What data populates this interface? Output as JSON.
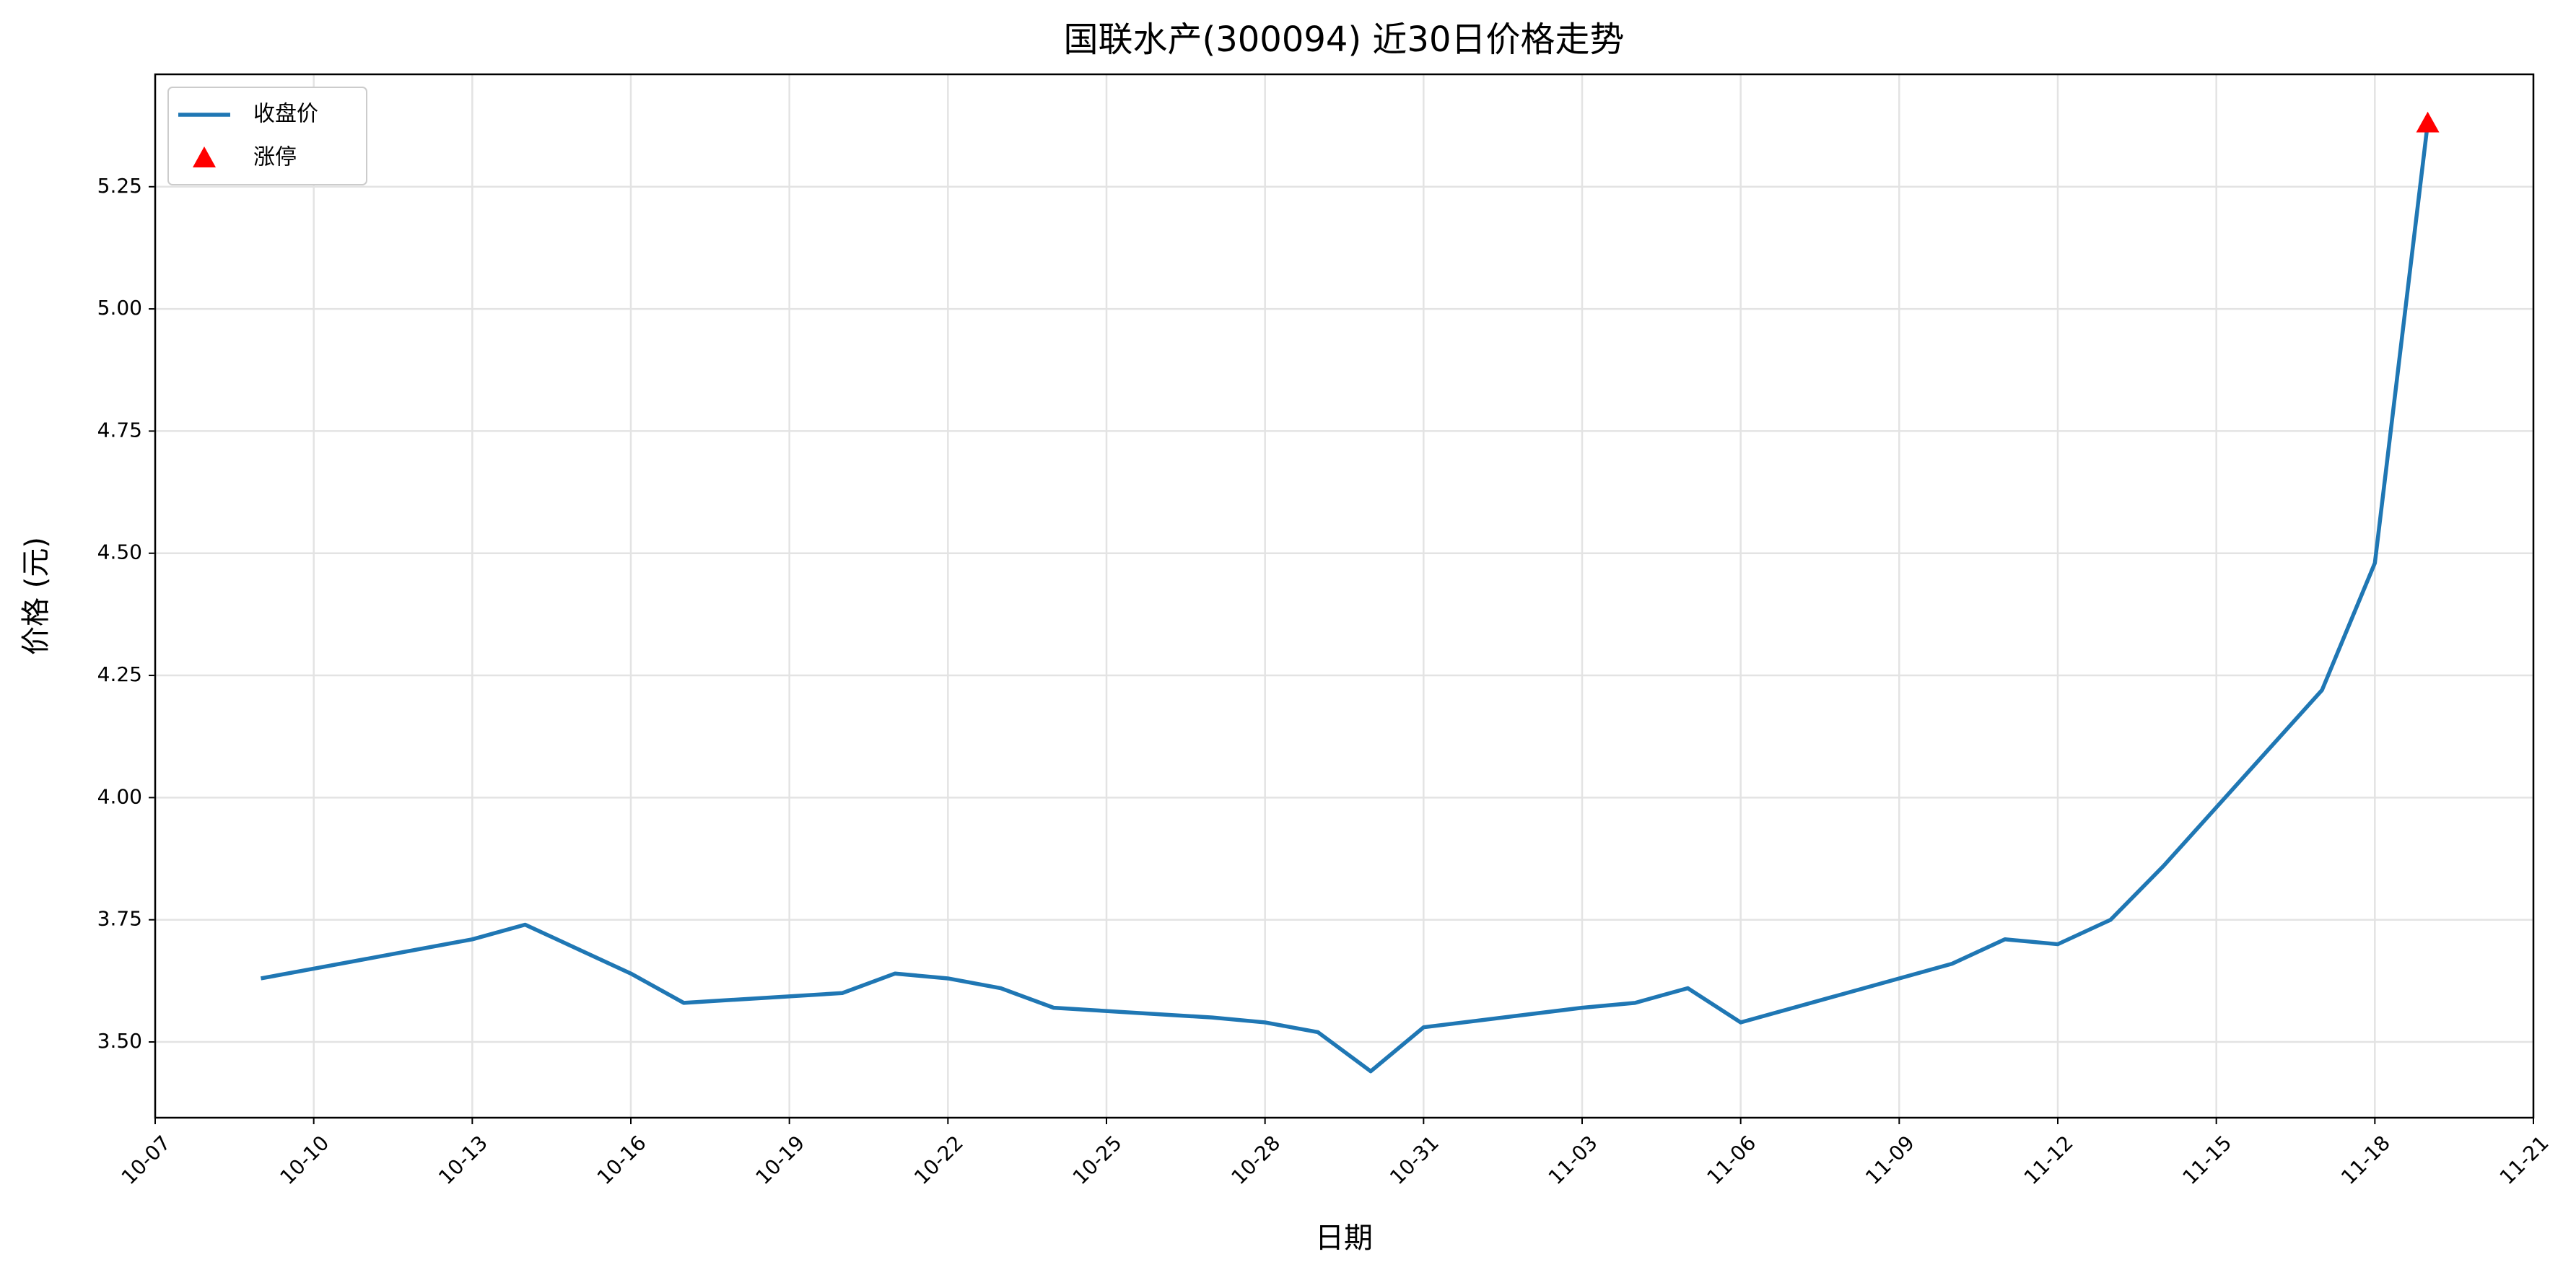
{
  "chart_data": {
    "type": "line",
    "title": "国联水产(300094) 近30日价格走势",
    "xlabel": "日期",
    "ylabel": "价格 (元)",
    "series": [
      {
        "name": "收盘价",
        "color": "#1f77b4",
        "type": "line",
        "x": [
          "10-09",
          "10-10",
          "10-13",
          "10-14",
          "10-15",
          "10-16",
          "10-17",
          "10-20",
          "10-21",
          "10-22",
          "10-23",
          "10-24",
          "10-27",
          "10-28",
          "10-29",
          "10-30",
          "10-31",
          "11-03",
          "11-04",
          "11-05",
          "11-06",
          "11-07",
          "11-10",
          "11-11",
          "11-12",
          "11-13",
          "11-14",
          "11-17",
          "11-18",
          "11-19"
        ],
        "values": [
          3.63,
          3.65,
          3.71,
          3.74,
          3.69,
          3.64,
          3.58,
          3.6,
          3.64,
          3.63,
          3.61,
          3.57,
          3.55,
          3.54,
          3.52,
          3.44,
          3.53,
          3.57,
          3.58,
          3.61,
          3.54,
          3.57,
          3.66,
          3.71,
          3.7,
          3.75,
          3.86,
          4.22,
          4.48,
          5.38
        ]
      },
      {
        "name": "涨停",
        "color": "#ff0000",
        "type": "scatter",
        "x": [
          "11-19"
        ],
        "values": [
          5.38
        ]
      }
    ],
    "xlim": [
      "10-07",
      "11-21"
    ],
    "xticks": [
      "10-07",
      "10-10",
      "10-13",
      "10-16",
      "10-19",
      "10-22",
      "10-25",
      "10-28",
      "10-31",
      "11-03",
      "11-06",
      "11-09",
      "11-12",
      "11-15",
      "11-18",
      "11-21"
    ],
    "ylim": [
      3.345,
      5.48
    ],
    "yticks": [
      {
        "value": 3.5,
        "label": "3.50"
      },
      {
        "value": 3.75,
        "label": "3.75"
      },
      {
        "value": 4,
        "label": "4.00"
      },
      {
        "value": 4.25,
        "label": "4.25"
      },
      {
        "value": 4.5,
        "label": "4.50"
      },
      {
        "value": 4.75,
        "label": "4.75"
      },
      {
        "value": 5,
        "label": "5.00"
      },
      {
        "value": 5.25,
        "label": "5.25"
      }
    ],
    "grid": true,
    "legend": "upper left"
  }
}
